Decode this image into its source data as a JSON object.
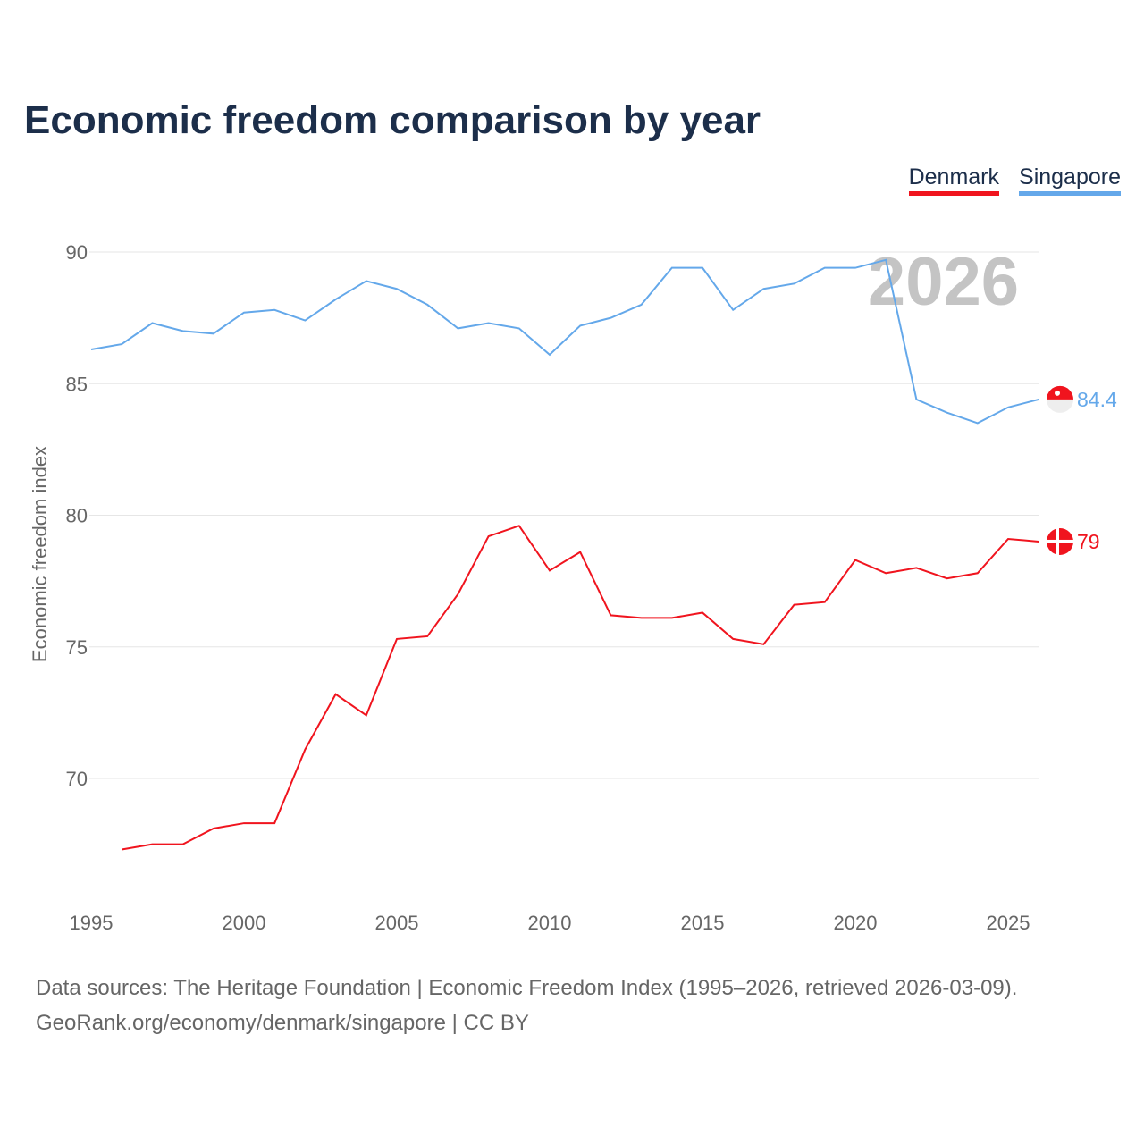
{
  "title": "Economic freedom comparison by year",
  "footer": {
    "line1": "Data sources: The Heritage Foundation | Economic Freedom Index (1995–2026, retrieved 2026-03-09).",
    "line2": "GeoRank.org/economy/denmark/singapore | CC BY"
  },
  "chart_data": {
    "type": "line",
    "title": "Economic freedom comparison by year",
    "xlabel": "",
    "ylabel": "Economic freedom index",
    "xlim": [
      1995,
      2026
    ],
    "ylim": [
      65.5,
      91
    ],
    "xticks": [
      1995,
      2000,
      2005,
      2010,
      2015,
      2020,
      2025
    ],
    "yticks": [
      70,
      75,
      80,
      85,
      90
    ],
    "watermark": "2026",
    "legend": "top-right",
    "series": [
      {
        "name": "Denmark",
        "color": "#f0141e",
        "end_label": "79",
        "flag": "denmark-flag",
        "x": [
          1996,
          1997,
          1998,
          1999,
          2000,
          2001,
          2002,
          2003,
          2004,
          2005,
          2006,
          2007,
          2008,
          2009,
          2010,
          2011,
          2012,
          2013,
          2014,
          2015,
          2016,
          2017,
          2018,
          2019,
          2020,
          2021,
          2022,
          2023,
          2024,
          2025,
          2026
        ],
        "values": [
          67.3,
          67.5,
          67.5,
          68.1,
          68.3,
          68.3,
          71.1,
          73.2,
          72.4,
          75.3,
          75.4,
          77.0,
          79.2,
          79.6,
          77.9,
          78.6,
          76.2,
          76.1,
          76.1,
          76.3,
          75.3,
          75.1,
          76.6,
          76.7,
          78.3,
          77.8,
          78.0,
          77.6,
          77.8,
          79.1,
          79.0
        ]
      },
      {
        "name": "Singapore",
        "color": "#64a8ea",
        "end_label": "84.4",
        "flag": "singapore-flag",
        "x": [
          1995,
          1996,
          1997,
          1998,
          1999,
          2000,
          2001,
          2002,
          2003,
          2004,
          2005,
          2006,
          2007,
          2008,
          2009,
          2010,
          2011,
          2012,
          2013,
          2014,
          2015,
          2016,
          2017,
          2018,
          2019,
          2020,
          2021,
          2022,
          2023,
          2024,
          2025,
          2026
        ],
        "values": [
          86.3,
          86.5,
          87.3,
          87.0,
          86.9,
          87.7,
          87.8,
          87.4,
          88.2,
          88.9,
          88.6,
          88.0,
          87.1,
          87.3,
          87.1,
          86.1,
          87.2,
          87.5,
          88.0,
          89.4,
          89.4,
          87.8,
          88.6,
          88.8,
          89.4,
          89.4,
          89.7,
          84.4,
          83.9,
          83.5,
          84.1,
          84.4
        ]
      }
    ]
  }
}
